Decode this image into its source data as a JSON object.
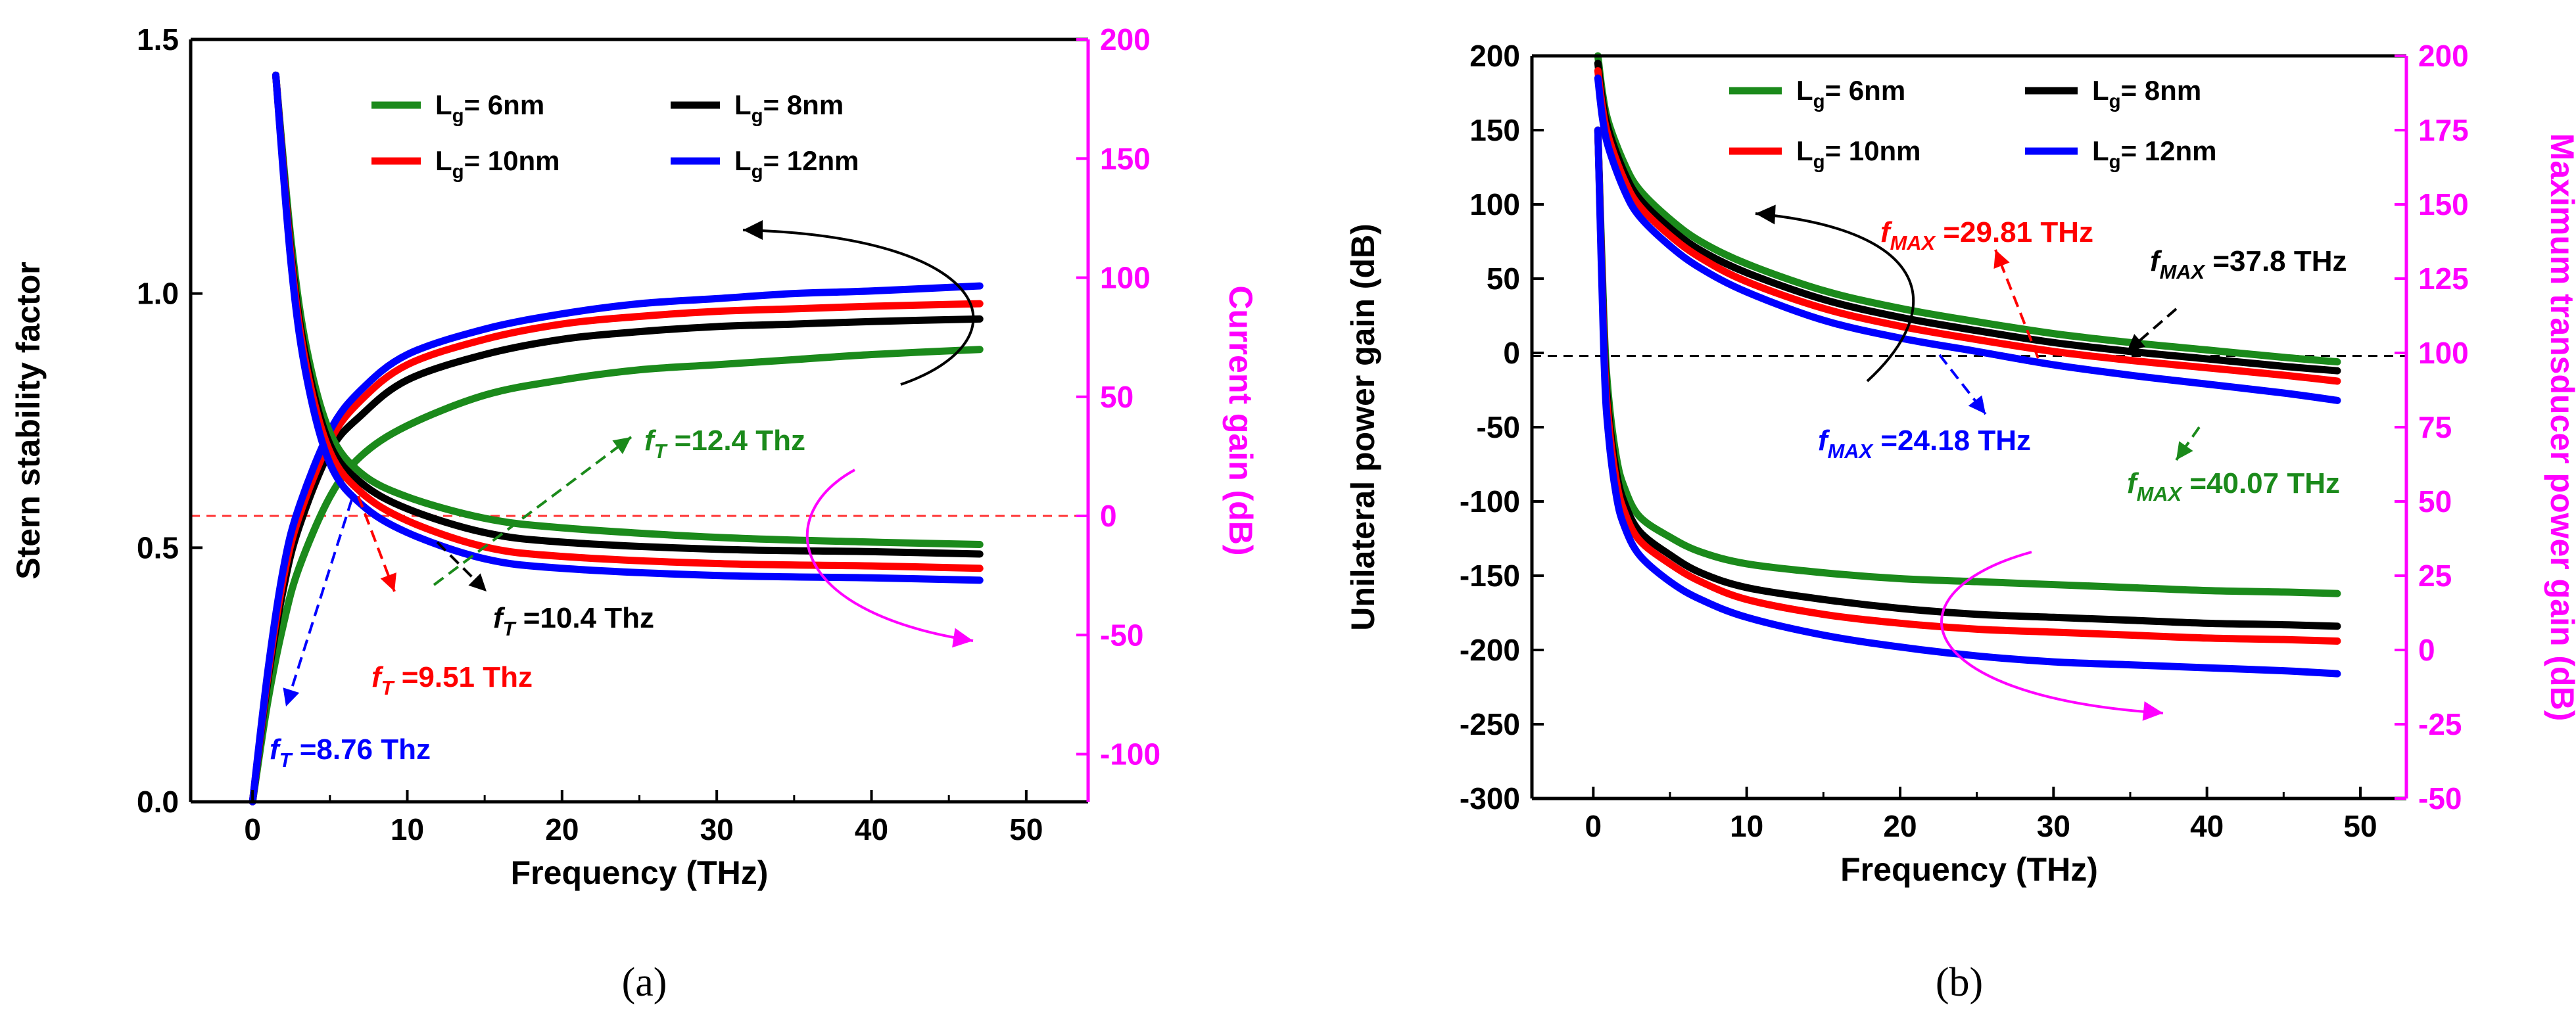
{
  "chart_data": [
    {
      "type": "line",
      "panel_caption": "(a)",
      "xlabel": "Frequency (THz)",
      "ylabel_left": "Stern stability factor",
      "ylabel_right": "Current gain (dB)",
      "xlim": [
        -4,
        54
      ],
      "ylim_left": [
        0,
        1.5
      ],
      "ylim_right": [
        -120,
        200
      ],
      "xticks": [
        0,
        10,
        20,
        30,
        40,
        50
      ],
      "yticks_left": [
        0.0,
        0.5,
        1.0,
        1.5
      ],
      "yticks_right": [
        -100,
        -50,
        0,
        50,
        100,
        150,
        200
      ],
      "reference_line_right": 0,
      "legend": {
        "placement": "top",
        "entries": [
          {
            "label": "Lg= 6nm",
            "base": "L",
            "sub": "g",
            "rest": "= 6nm",
            "color": "#1b8a1b"
          },
          {
            "label": "Lg= 8nm",
            "base": "L",
            "sub": "g",
            "rest": "= 8nm",
            "color": "#000000"
          },
          {
            "label": "Lg= 10nm",
            "base": "L",
            "sub": "g",
            "rest": "= 10nm",
            "color": "#ff0000"
          },
          {
            "label": "Lg= 12nm",
            "base": "L",
            "sub": "g",
            "rest": "= 12nm",
            "color": "#0000ff"
          }
        ]
      },
      "series": [
        {
          "name": "Lg= 6nm",
          "axis": "left",
          "color": "#1b8a1b",
          "x": [
            0,
            1,
            2,
            3,
            5,
            7,
            10,
            15,
            20,
            25,
            30,
            35,
            40,
            47
          ],
          "y": [
            0.0,
            0.2,
            0.35,
            0.46,
            0.6,
            0.68,
            0.74,
            0.8,
            0.83,
            0.85,
            0.86,
            0.87,
            0.88,
            0.89
          ]
        },
        {
          "name": "Lg= 8nm",
          "axis": "left",
          "color": "#000000",
          "x": [
            0,
            1,
            2,
            3,
            5,
            7,
            10,
            15,
            20,
            25,
            30,
            35,
            40,
            47
          ],
          "y": [
            0.0,
            0.24,
            0.42,
            0.54,
            0.69,
            0.76,
            0.83,
            0.88,
            0.91,
            0.925,
            0.935,
            0.94,
            0.945,
            0.95
          ]
        },
        {
          "name": "Lg= 10nm",
          "axis": "left",
          "color": "#ff0000",
          "x": [
            0,
            1,
            2,
            3,
            5,
            7,
            10,
            15,
            20,
            25,
            30,
            35,
            40,
            47
          ],
          "y": [
            0.0,
            0.25,
            0.44,
            0.56,
            0.71,
            0.79,
            0.86,
            0.91,
            0.94,
            0.955,
            0.965,
            0.97,
            0.975,
            0.98
          ]
        },
        {
          "name": "Lg= 12nm",
          "axis": "left",
          "color": "#0000ff",
          "x": [
            0,
            1,
            2,
            3,
            5,
            7,
            10,
            15,
            20,
            25,
            30,
            35,
            40,
            47
          ],
          "y": [
            0.0,
            0.26,
            0.46,
            0.58,
            0.73,
            0.81,
            0.88,
            0.93,
            0.96,
            0.98,
            0.99,
            1.0,
            1.005,
            1.015
          ]
        },
        {
          "name": "Lg= 6nm",
          "axis": "right",
          "color": "#1b8a1b",
          "x": [
            1.5,
            2.5,
            3.5,
            5,
            7,
            10,
            15,
            20,
            30,
            40,
            47
          ],
          "y": [
            185,
            115,
            70,
            35,
            18,
            8,
            -1,
            -5,
            -9,
            -11,
            -12
          ]
        },
        {
          "name": "Lg= 8nm",
          "axis": "right",
          "color": "#000000",
          "x": [
            1.5,
            2.5,
            3.5,
            5,
            7,
            10,
            15,
            20,
            30,
            40,
            47
          ],
          "y": [
            185,
            110,
            65,
            30,
            14,
            3,
            -7,
            -11,
            -14,
            -15,
            -16
          ]
        },
        {
          "name": "Lg= 10nm",
          "axis": "right",
          "color": "#ff0000",
          "x": [
            1.5,
            2.5,
            3.5,
            5,
            7,
            10,
            15,
            20,
            30,
            40,
            47
          ],
          "y": [
            185,
            108,
            62,
            27,
            10,
            -2,
            -13,
            -17,
            -20,
            -21,
            -22
          ]
        },
        {
          "name": "Lg= 12nm",
          "axis": "right",
          "color": "#0000ff",
          "x": [
            1.5,
            2.5,
            3.5,
            5,
            7,
            10,
            15,
            20,
            30,
            40,
            47
          ],
          "y": [
            185,
            105,
            58,
            22,
            5,
            -7,
            -18,
            -22,
            -25,
            -26,
            -27
          ]
        }
      ],
      "annotations": [
        {
          "label": "fT =12.4 Thz",
          "base": "f",
          "sub": "T",
          "rest": " =12.4 Thz",
          "color": "#1b8a1b"
        },
        {
          "label": "fT =10.4 Thz",
          "base": "f",
          "sub": "T",
          "rest": " =10.4 Thz",
          "color": "#000000"
        },
        {
          "label": "fT =9.51 Thz",
          "base": "f",
          "sub": "T",
          "rest": " =9.51 Thz",
          "color": "#ff0000"
        },
        {
          "label": "fT =8.76 Thz",
          "base": "f",
          "sub": "T",
          "rest": " =8.76 Thz",
          "color": "#0000ff"
        }
      ]
    },
    {
      "type": "line",
      "panel_caption": "(b)",
      "xlabel": "Frequency (THz)",
      "ylabel_left": "Unilateral power gain (dB)",
      "ylabel_right": "Maximum transducer power gain (dB)",
      "xlim": [
        -4,
        53
      ],
      "ylim_left": [
        -300,
        200
      ],
      "ylim_right": [
        -50,
        200
      ],
      "xticks": [
        0,
        10,
        20,
        30,
        40,
        50
      ],
      "yticks_left": [
        -300,
        -250,
        -200,
        -150,
        -100,
        -50,
        0,
        50,
        100,
        150,
        200
      ],
      "yticks_right": [
        -50,
        -25,
        0,
        25,
        50,
        75,
        100,
        125,
        150,
        175,
        200
      ],
      "reference_line_left": -2,
      "legend": {
        "placement": "top",
        "entries": [
          {
            "label": "Lg= 6nm",
            "base": "L",
            "sub": "g",
            "rest": "= 6nm",
            "color": "#1b8a1b"
          },
          {
            "label": "Lg= 8nm",
            "base": "L",
            "sub": "g",
            "rest": "= 8nm",
            "color": "#000000"
          },
          {
            "label": "Lg= 10nm",
            "base": "L",
            "sub": "g",
            "rest": "= 10nm",
            "color": "#ff0000"
          },
          {
            "label": "Lg= 12nm",
            "base": "L",
            "sub": "g",
            "rest": "= 12nm",
            "color": "#0000ff"
          }
        ]
      },
      "series": [
        {
          "name": "Lg= 6nm",
          "axis": "left",
          "color": "#1b8a1b",
          "x": [
            0.3,
            0.6,
            1,
            2,
            3,
            5,
            7,
            10,
            15,
            20,
            25,
            30,
            35,
            40,
            45,
            48.5
          ],
          "y": [
            200,
            175,
            155,
            128,
            110,
            90,
            75,
            60,
            42,
            30,
            21,
            13,
            7,
            2,
            -3,
            -6
          ]
        },
        {
          "name": "Lg= 8nm",
          "axis": "left",
          "color": "#000000",
          "x": [
            0.3,
            0.6,
            1,
            2,
            3,
            5,
            7,
            10,
            15,
            20,
            25,
            30,
            35,
            40,
            45,
            48.5
          ],
          "y": [
            195,
            170,
            150,
            122,
            104,
            84,
            69,
            54,
            36,
            24,
            15,
            7,
            1,
            -4,
            -9,
            -12
          ]
        },
        {
          "name": "Lg= 10nm",
          "axis": "left",
          "color": "#ff0000",
          "x": [
            0.3,
            0.6,
            1,
            2,
            3,
            5,
            7,
            10,
            15,
            20,
            25,
            30,
            35,
            40,
            45,
            48.5
          ],
          "y": [
            190,
            165,
            145,
            117,
            99,
            79,
            64,
            48,
            30,
            18,
            9,
            1,
            -5,
            -10,
            -15,
            -19
          ]
        },
        {
          "name": "Lg= 12nm",
          "axis": "left",
          "color": "#0000ff",
          "x": [
            0.3,
            0.6,
            1,
            2,
            3,
            5,
            7,
            10,
            15,
            20,
            25,
            30,
            35,
            40,
            45,
            48.5
          ],
          "y": [
            185,
            158,
            138,
            110,
            92,
            72,
            57,
            41,
            22,
            10,
            1,
            -8,
            -15,
            -21,
            -27,
            -32
          ]
        },
        {
          "name": "Lg= 6nm",
          "axis": "right",
          "color": "#1b8a1b",
          "x": [
            0.3,
            0.7,
            1,
            1.5,
            2,
            3,
            5,
            7,
            10,
            15,
            20,
            25,
            30,
            35,
            40,
            45,
            48.5
          ],
          "y": [
            175,
            110,
            85,
            65,
            55,
            45,
            38,
            33,
            29,
            26,
            24,
            23,
            22,
            21,
            20,
            19.5,
            19
          ]
        },
        {
          "name": "Lg= 8nm",
          "axis": "right",
          "color": "#000000",
          "x": [
            0.3,
            0.7,
            1,
            1.5,
            2,
            3,
            5,
            7,
            10,
            15,
            20,
            25,
            30,
            35,
            40,
            45,
            48.5
          ],
          "y": [
            175,
            105,
            80,
            60,
            50,
            40,
            32,
            26,
            21,
            17,
            14,
            12,
            11,
            10,
            9,
            8.5,
            8
          ]
        },
        {
          "name": "Lg= 10nm",
          "axis": "right",
          "color": "#ff0000",
          "x": [
            0.3,
            0.7,
            1,
            1.5,
            2,
            3,
            5,
            7,
            10,
            15,
            20,
            25,
            30,
            35,
            40,
            45,
            48.5
          ],
          "y": [
            175,
            102,
            77,
            57,
            47,
            37,
            29,
            23,
            17,
            12,
            9,
            7,
            6,
            5,
            4,
            3.5,
            3
          ]
        },
        {
          "name": "Lg= 12nm",
          "axis": "right",
          "color": "#0000ff",
          "x": [
            0.3,
            0.7,
            1,
            1.5,
            2,
            3,
            5,
            7,
            10,
            15,
            20,
            25,
            30,
            35,
            40,
            45,
            48.5
          ],
          "y": [
            175,
            98,
            72,
            52,
            42,
            32,
            23,
            17,
            11,
            5,
            1,
            -2,
            -4,
            -5,
            -6,
            -7,
            -8
          ]
        }
      ],
      "annotations": [
        {
          "label": "fMAX =29.81 THz",
          "base": "f",
          "sub": "MAX",
          "rest": " =29.81 THz",
          "color": "#ff0000"
        },
        {
          "label": "fMAX =37.8 THz",
          "base": "f",
          "sub": "MAX",
          "rest": " =37.8 THz",
          "color": "#000000"
        },
        {
          "label": "fMAX =24.18 THz",
          "base": "f",
          "sub": "MAX",
          "rest": " =24.18 THz",
          "color": "#0000ff"
        },
        {
          "label": "fMAX =40.07 THz",
          "base": "f",
          "sub": "MAX",
          "rest": " =40.07 THz",
          "color": "#1b8a1b"
        }
      ]
    }
  ]
}
